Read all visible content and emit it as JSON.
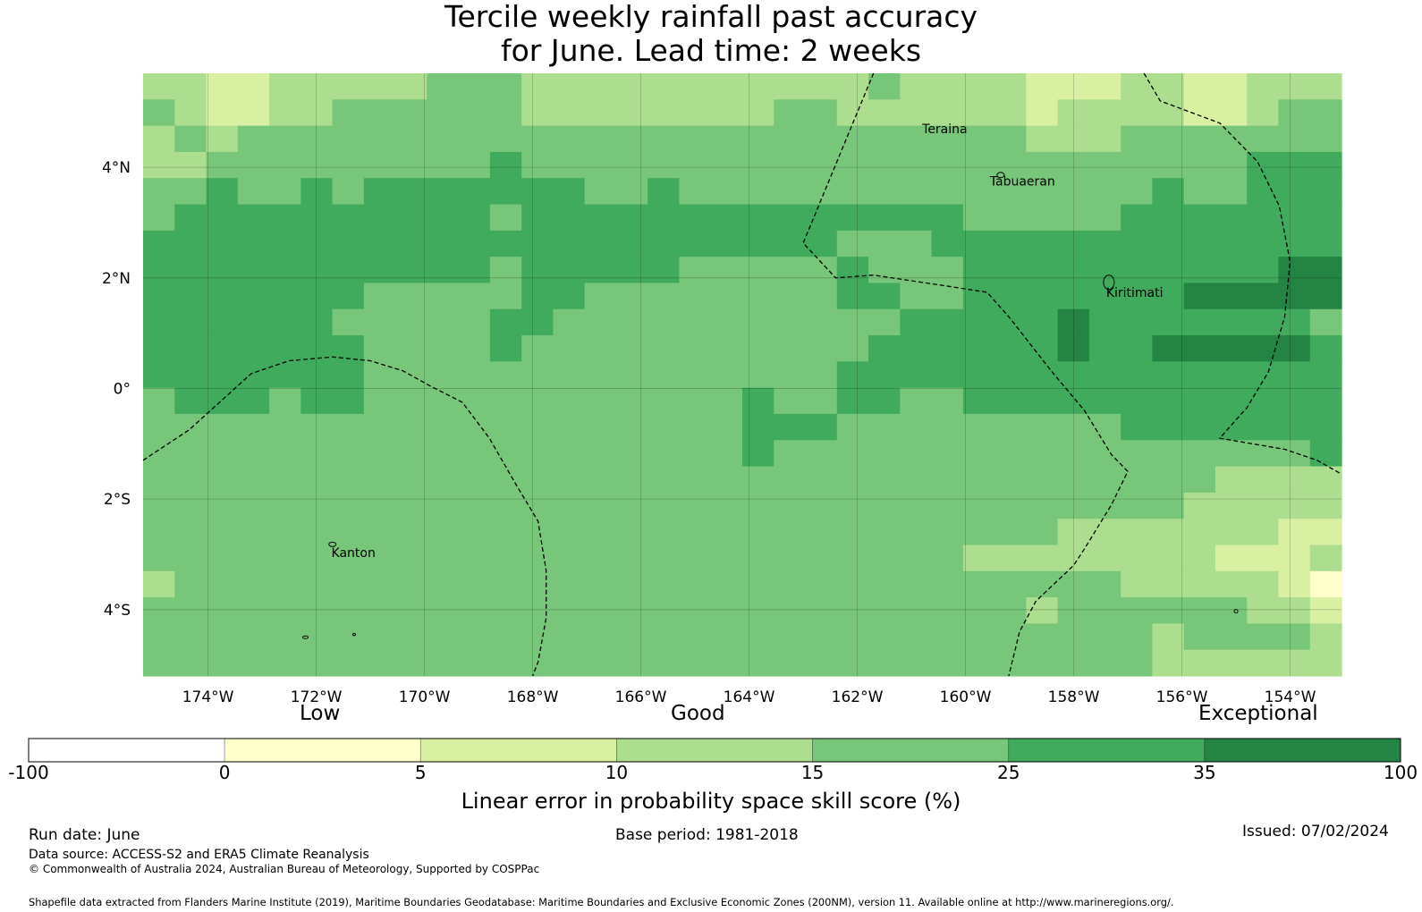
{
  "title": {
    "line1": "Tercile weekly rainfall past accuracy",
    "line2": "for June. Lead time: 2 weeks"
  },
  "map": {
    "lon_range": [
      -175.2,
      -153.05
    ],
    "lat_range": [
      -5.2,
      5.7
    ],
    "grid_cell_deg": 0.833,
    "grid_skill_percent": [
      [
        10,
        10,
        5,
        5,
        10,
        10,
        10,
        10,
        10,
        15,
        15,
        15,
        10,
        10,
        10,
        10,
        10,
        10,
        10,
        10,
        10,
        10,
        10,
        15,
        10,
        10,
        10,
        10,
        5,
        5,
        5,
        10,
        10,
        5,
        5,
        10,
        10,
        10
      ],
      [
        15,
        10,
        5,
        5,
        10,
        10,
        15,
        15,
        15,
        15,
        15,
        15,
        10,
        10,
        10,
        10,
        10,
        10,
        10,
        10,
        15,
        15,
        10,
        10,
        10,
        10,
        10,
        10,
        5,
        10,
        10,
        10,
        10,
        5,
        5,
        10,
        15,
        15
      ],
      [
        10,
        15,
        10,
        15,
        15,
        15,
        15,
        15,
        15,
        15,
        15,
        15,
        15,
        15,
        15,
        15,
        15,
        15,
        15,
        15,
        15,
        15,
        15,
        15,
        15,
        15,
        15,
        15,
        10,
        10,
        10,
        15,
        15,
        15,
        15,
        15,
        15,
        15
      ],
      [
        10,
        10,
        15,
        15,
        15,
        15,
        15,
        15,
        15,
        15,
        15,
        25,
        15,
        15,
        15,
        15,
        15,
        15,
        15,
        15,
        15,
        15,
        15,
        15,
        15,
        15,
        15,
        15,
        15,
        15,
        15,
        15,
        15,
        15,
        15,
        25,
        25,
        25
      ],
      [
        15,
        15,
        25,
        15,
        15,
        25,
        15,
        25,
        25,
        25,
        25,
        25,
        25,
        25,
        15,
        15,
        25,
        15,
        15,
        15,
        15,
        15,
        15,
        15,
        15,
        15,
        15,
        15,
        15,
        15,
        15,
        15,
        25,
        15,
        15,
        25,
        25,
        25
      ],
      [
        15,
        25,
        25,
        25,
        25,
        25,
        25,
        25,
        25,
        25,
        25,
        15,
        25,
        25,
        25,
        25,
        25,
        25,
        25,
        25,
        25,
        25,
        25,
        25,
        25,
        25,
        15,
        15,
        15,
        15,
        15,
        25,
        25,
        25,
        25,
        25,
        25,
        25
      ],
      [
        25,
        25,
        25,
        25,
        25,
        25,
        25,
        25,
        25,
        25,
        25,
        25,
        25,
        25,
        25,
        25,
        25,
        25,
        25,
        25,
        25,
        25,
        15,
        15,
        15,
        25,
        25,
        25,
        25,
        25,
        25,
        25,
        25,
        25,
        25,
        25,
        25,
        25
      ],
      [
        25,
        25,
        25,
        25,
        25,
        25,
        25,
        25,
        25,
        25,
        25,
        15,
        25,
        25,
        25,
        25,
        25,
        15,
        15,
        15,
        15,
        15,
        25,
        15,
        15,
        15,
        25,
        25,
        25,
        25,
        25,
        25,
        25,
        25,
        25,
        25,
        35,
        35
      ],
      [
        25,
        25,
        25,
        25,
        25,
        25,
        25,
        15,
        15,
        15,
        15,
        15,
        25,
        25,
        15,
        15,
        15,
        15,
        15,
        15,
        15,
        15,
        25,
        25,
        15,
        15,
        25,
        25,
        25,
        25,
        25,
        25,
        25,
        35,
        35,
        35,
        35,
        35
      ],
      [
        25,
        25,
        25,
        25,
        25,
        25,
        15,
        15,
        15,
        15,
        15,
        25,
        25,
        15,
        15,
        15,
        15,
        15,
        15,
        15,
        15,
        15,
        15,
        15,
        25,
        25,
        25,
        25,
        25,
        35,
        25,
        25,
        25,
        25,
        25,
        25,
        25,
        15
      ],
      [
        25,
        25,
        25,
        25,
        25,
        25,
        25,
        15,
        15,
        15,
        15,
        25,
        15,
        15,
        15,
        15,
        15,
        15,
        15,
        15,
        15,
        15,
        15,
        25,
        25,
        25,
        25,
        25,
        25,
        35,
        25,
        25,
        35,
        35,
        35,
        35,
        35,
        25
      ],
      [
        25,
        25,
        25,
        25,
        25,
        25,
        25,
        15,
        15,
        15,
        15,
        15,
        15,
        15,
        15,
        15,
        15,
        15,
        15,
        15,
        15,
        15,
        25,
        25,
        25,
        25,
        25,
        25,
        25,
        25,
        25,
        25,
        25,
        25,
        25,
        25,
        25,
        25
      ],
      [
        15,
        25,
        25,
        25,
        15,
        25,
        25,
        15,
        15,
        15,
        15,
        15,
        15,
        15,
        15,
        15,
        15,
        15,
        15,
        25,
        15,
        15,
        25,
        25,
        15,
        15,
        25,
        25,
        25,
        25,
        25,
        25,
        25,
        25,
        25,
        25,
        25,
        25
      ],
      [
        15,
        15,
        15,
        15,
        15,
        15,
        15,
        15,
        15,
        15,
        15,
        15,
        15,
        15,
        15,
        15,
        15,
        15,
        15,
        25,
        25,
        25,
        15,
        15,
        15,
        15,
        15,
        15,
        15,
        15,
        15,
        25,
        25,
        25,
        25,
        25,
        25,
        25
      ],
      [
        15,
        15,
        15,
        15,
        15,
        15,
        15,
        15,
        15,
        15,
        15,
        15,
        15,
        15,
        15,
        15,
        15,
        15,
        15,
        25,
        15,
        15,
        15,
        15,
        15,
        15,
        15,
        15,
        15,
        15,
        15,
        15,
        15,
        15,
        15,
        15,
        15,
        25
      ],
      [
        15,
        15,
        15,
        15,
        15,
        15,
        15,
        15,
        15,
        15,
        15,
        15,
        15,
        15,
        15,
        15,
        15,
        15,
        15,
        15,
        15,
        15,
        15,
        15,
        15,
        15,
        15,
        15,
        15,
        15,
        15,
        15,
        15,
        15,
        10,
        10,
        10,
        10
      ],
      [
        15,
        15,
        15,
        15,
        15,
        15,
        15,
        15,
        15,
        15,
        15,
        15,
        15,
        15,
        15,
        15,
        15,
        15,
        15,
        15,
        15,
        15,
        15,
        15,
        15,
        15,
        15,
        15,
        15,
        15,
        15,
        15,
        15,
        10,
        10,
        10,
        10,
        10
      ],
      [
        15,
        15,
        15,
        15,
        15,
        15,
        15,
        15,
        15,
        15,
        15,
        15,
        15,
        15,
        15,
        15,
        15,
        15,
        15,
        15,
        15,
        15,
        15,
        15,
        15,
        15,
        15,
        15,
        15,
        10,
        10,
        10,
        10,
        10,
        10,
        10,
        5,
        5
      ],
      [
        15,
        15,
        15,
        15,
        15,
        15,
        15,
        15,
        15,
        15,
        15,
        15,
        15,
        15,
        15,
        15,
        15,
        15,
        15,
        15,
        15,
        15,
        15,
        15,
        15,
        15,
        10,
        10,
        10,
        10,
        10,
        10,
        10,
        10,
        5,
        5,
        5,
        10
      ],
      [
        10,
        15,
        15,
        15,
        15,
        15,
        15,
        15,
        15,
        15,
        15,
        15,
        15,
        15,
        15,
        15,
        15,
        15,
        15,
        15,
        15,
        15,
        15,
        15,
        15,
        15,
        15,
        15,
        15,
        15,
        15,
        10,
        10,
        10,
        10,
        10,
        5,
        0
      ],
      [
        15,
        15,
        15,
        15,
        15,
        15,
        15,
        15,
        15,
        15,
        15,
        15,
        15,
        15,
        15,
        15,
        15,
        15,
        15,
        15,
        15,
        15,
        15,
        15,
        15,
        15,
        15,
        15,
        10,
        15,
        15,
        15,
        15,
        15,
        15,
        10,
        10,
        5
      ],
      [
        15,
        15,
        15,
        15,
        15,
        15,
        15,
        15,
        15,
        15,
        15,
        15,
        15,
        15,
        15,
        15,
        15,
        15,
        15,
        15,
        15,
        15,
        15,
        15,
        15,
        15,
        15,
        15,
        15,
        15,
        15,
        15,
        10,
        15,
        15,
        15,
        15,
        10
      ],
      [
        15,
        15,
        15,
        15,
        15,
        15,
        15,
        15,
        15,
        15,
        15,
        15,
        15,
        15,
        15,
        15,
        15,
        15,
        15,
        15,
        15,
        15,
        15,
        15,
        15,
        15,
        15,
        15,
        15,
        15,
        15,
        15,
        10,
        10,
        10,
        10,
        10,
        10
      ]
    ],
    "lon_ticks": [
      {
        "lon": -174,
        "label": "174°W"
      },
      {
        "lon": -172,
        "label": "172°W"
      },
      {
        "lon": -170,
        "label": "170°W"
      },
      {
        "lon": -168,
        "label": "168°W"
      },
      {
        "lon": -166,
        "label": "166°W"
      },
      {
        "lon": -164,
        "label": "164°W"
      },
      {
        "lon": -162,
        "label": "162°W"
      },
      {
        "lon": -160,
        "label": "160°W"
      },
      {
        "lon": -158,
        "label": "158°W"
      },
      {
        "lon": -156,
        "label": "156°W"
      },
      {
        "lon": -154,
        "label": "154°W"
      }
    ],
    "lat_ticks": [
      {
        "lat": 4,
        "label": "4°N"
      },
      {
        "lat": 2,
        "label": "2°N"
      },
      {
        "lat": 0,
        "label": "0°"
      },
      {
        "lat": -2,
        "label": "2°S"
      },
      {
        "lat": -4,
        "label": "4°S"
      }
    ],
    "places": [
      {
        "name": "Teraina",
        "lon": -160.8,
        "lat": 4.62
      },
      {
        "name": "Tabuaeran",
        "lon": -159.55,
        "lat": 3.67
      },
      {
        "name": "Kiritimati",
        "lon": -157.4,
        "lat": 1.66
      },
      {
        "name": "Kanton",
        "lon": -171.72,
        "lat": -3.05
      }
    ],
    "eez_boundaries": [
      [
        [
          -175.2,
          -1.3
        ],
        [
          -174.35,
          -0.75
        ],
        [
          -173.2,
          0.27
        ],
        [
          -172.5,
          0.5
        ],
        [
          -171.7,
          0.57
        ],
        [
          -171,
          0.5
        ],
        [
          -170.4,
          0.32
        ],
        [
          -169.9,
          0.05
        ],
        [
          -169.3,
          -0.25
        ],
        [
          -168.8,
          -0.9
        ],
        [
          -168.3,
          -1.75
        ],
        [
          -167.9,
          -2.4
        ],
        [
          -167.75,
          -3.3
        ],
        [
          -167.75,
          -4.15
        ],
        [
          -167.9,
          -4.95
        ],
        [
          -168,
          -5.2
        ]
      ],
      [
        [
          -161.7,
          5.7
        ],
        [
          -163,
          2.63
        ],
        [
          -162.4,
          2.0
        ],
        [
          -161.7,
          2.05
        ],
        [
          -160.4,
          1.86
        ],
        [
          -159.6,
          1.74
        ],
        [
          -159.2,
          1.3
        ],
        [
          -158.4,
          0.3
        ],
        [
          -157.8,
          -0.4
        ],
        [
          -157.3,
          -1.2
        ],
        [
          -157,
          -1.5
        ],
        [
          -157.3,
          -2.1
        ],
        [
          -157.8,
          -2.9
        ],
        [
          -158,
          -3.2
        ],
        [
          -158.7,
          -3.85
        ],
        [
          -159,
          -4.4
        ],
        [
          -159.2,
          -5.2
        ]
      ],
      [
        [
          -156.7,
          5.7
        ],
        [
          -156.4,
          5.2
        ],
        [
          -155.3,
          4.8
        ],
        [
          -154.6,
          4.1
        ],
        [
          -154.2,
          3.3
        ],
        [
          -154.0,
          2.3
        ],
        [
          -154.1,
          1.3
        ],
        [
          -154.4,
          0.3
        ],
        [
          -154.8,
          -0.35
        ],
        [
          -155.3,
          -0.9
        ],
        [
          -154.1,
          -1.1
        ],
        [
          -153.5,
          -1.3
        ],
        [
          -153.05,
          -1.55
        ]
      ]
    ]
  },
  "legend": {
    "level_labels": {
      "low": "Low",
      "good": "Good",
      "exceptional": "Exceptional"
    },
    "bins": [
      {
        "from": -100,
        "to": 0,
        "color": "#ffffff"
      },
      {
        "from": 0,
        "to": 5,
        "color": "#ffffcc"
      },
      {
        "from": 5,
        "to": 10,
        "color": "#d9f0a3"
      },
      {
        "from": 10,
        "to": 15,
        "color": "#addd8e"
      },
      {
        "from": 15,
        "to": 25,
        "color": "#78c679"
      },
      {
        "from": 25,
        "to": 35,
        "color": "#41ab5d"
      },
      {
        "from": 35,
        "to": 100,
        "color": "#238443"
      }
    ],
    "tick_labels": [
      "-100",
      "0",
      "5",
      "10",
      "15",
      "25",
      "35",
      "100"
    ],
    "axis_label": "Linear error in probability space skill score (%)"
  },
  "footer": {
    "run_date": "Run date: June",
    "base_period": "Base period: 1981-2018",
    "issued": "Issued: 07/02/2024",
    "data_source": "Data source: ACCESS-S2 and ERA5 Climate Reanalysis",
    "copyright": "© Commonwealth of Australia 2024, Australian Bureau of Meteorology, Supported by COSPPac",
    "shapefile_note": "Shapefile data extracted from Flanders Marine Institute (2019), Maritime Boundaries Geodatabase: Maritime Boundaries and Exclusive Economic Zones (200NM), version 11. Available online at http://www.marineregions.org/."
  }
}
